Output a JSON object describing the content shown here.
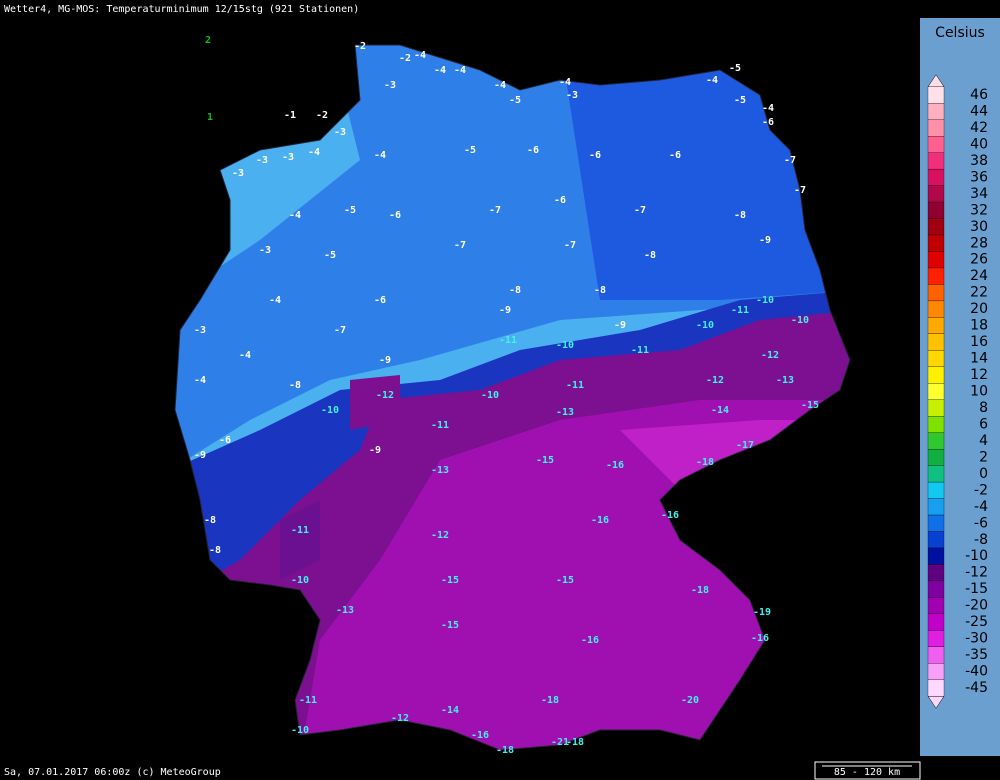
{
  "header": {
    "title": "Wetter4, MG-MOS: Temperaturminimum 12/15stg (921 Stationen)"
  },
  "footer": {
    "text": "Sa, 07.01.2017 06:00z (c) MeteoGroup",
    "scale": "85 - 120 km"
  },
  "legend": {
    "title": "Celsius",
    "stops": [
      {
        "label": "46",
        "color": "#ffe0e8"
      },
      {
        "label": "44",
        "color": "#ffb0c0"
      },
      {
        "label": "42",
        "color": "#ff90a8"
      },
      {
        "label": "40",
        "color": "#ff6090"
      },
      {
        "label": "38",
        "color": "#f0307a"
      },
      {
        "label": "36",
        "color": "#d81060"
      },
      {
        "label": "34",
        "color": "#b00848"
      },
      {
        "label": "32",
        "color": "#900030"
      },
      {
        "label": "30",
        "color": "#a00010"
      },
      {
        "label": "28",
        "color": "#c00000"
      },
      {
        "label": "26",
        "color": "#e00000"
      },
      {
        "label": "24",
        "color": "#ff2000"
      },
      {
        "label": "22",
        "color": "#ff6000"
      },
      {
        "label": "20",
        "color": "#ff8800"
      },
      {
        "label": "18",
        "color": "#ffa800"
      },
      {
        "label": "16",
        "color": "#ffc000"
      },
      {
        "label": "14",
        "color": "#ffd800"
      },
      {
        "label": "12",
        "color": "#fff000"
      },
      {
        "label": "10",
        "color": "#ffff30"
      },
      {
        "label": "8",
        "color": "#c8f000"
      },
      {
        "label": "6",
        "color": "#80e000"
      },
      {
        "label": "4",
        "color": "#30c830"
      },
      {
        "label": "2",
        "color": "#10b040"
      },
      {
        "label": "0",
        "color": "#10c080"
      },
      {
        "label": "-2",
        "color": "#10c8f0"
      },
      {
        "label": "-4",
        "color": "#18a0f0"
      },
      {
        "label": "-6",
        "color": "#1070e8"
      },
      {
        "label": "-8",
        "color": "#0840d0"
      },
      {
        "label": "-10",
        "color": "#0010a0"
      },
      {
        "label": "-12",
        "color": "#600080"
      },
      {
        "label": "-15",
        "color": "#8000a0"
      },
      {
        "label": "-20",
        "color": "#a000b0"
      },
      {
        "label": "-25",
        "color": "#c000c8"
      },
      {
        "label": "-30",
        "color": "#e020e0"
      },
      {
        "label": "-35",
        "color": "#f060f0"
      },
      {
        "label": "-40",
        "color": "#f8a0f8"
      },
      {
        "label": "-45",
        "color": "#ffd8ff"
      }
    ]
  },
  "stations": [
    2,
    1,
    -2,
    -2,
    -4,
    -4,
    -4,
    -3,
    -4,
    -5,
    -4,
    -3,
    -5,
    -4,
    -5,
    -4,
    -6,
    -1,
    -2,
    -3,
    -3,
    -3,
    -4,
    -3,
    -4,
    -5,
    -6,
    -6,
    -6,
    -7,
    -7,
    -4,
    -5,
    -6,
    -7,
    -6,
    -7,
    -8,
    -3,
    -5,
    -7,
    -7,
    -8,
    -9,
    -4,
    -6,
    -8,
    -8,
    -10,
    -3,
    -7,
    -9,
    -11,
    -9,
    -10,
    -11,
    -10,
    -4,
    -9,
    -10,
    -11,
    -12,
    -4,
    -8,
    -12,
    -10,
    -11,
    -12,
    -13,
    -15,
    -6,
    -10,
    -11,
    -13,
    -14,
    -17,
    -9,
    -9,
    -13,
    -15,
    -16,
    -18,
    -8,
    -11,
    -12,
    -16,
    -16,
    -8,
    -10,
    -15,
    -15,
    -18,
    -19,
    -13,
    -15,
    -16,
    -16,
    -11,
    -14,
    -18,
    -20,
    -18,
    -21,
    -18,
    -10,
    -12,
    -16
  ]
}
